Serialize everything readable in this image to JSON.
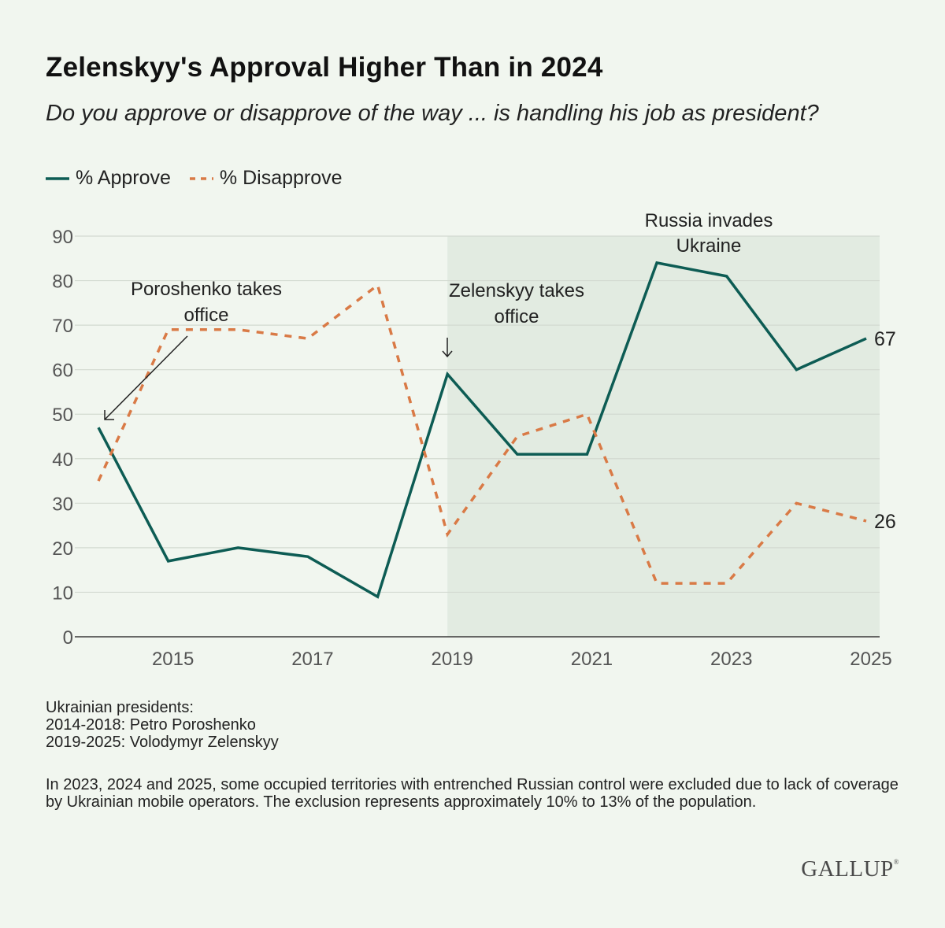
{
  "header": {
    "title": "Zelenskyy's Approval Higher Than in 2024",
    "subtitle": "Do you approve or disapprove of the way ... is handling his job as president?"
  },
  "chart_data": {
    "type": "line",
    "x": [
      2014,
      2015,
      2016,
      2017,
      2018,
      2019,
      2020,
      2021,
      2022,
      2023,
      2024,
      2025
    ],
    "series": [
      {
        "name": "% Approve",
        "values": [
          47,
          17,
          20,
          18,
          9,
          59,
          41,
          41,
          84,
          81,
          60,
          67
        ],
        "color": "#0d5c54",
        "style": "solid"
      },
      {
        "name": "% Disapprove",
        "values": [
          35,
          69,
          69,
          67,
          79,
          23,
          45,
          50,
          12,
          12,
          30,
          26
        ],
        "color": "#d97a46",
        "style": "dashed"
      }
    ],
    "xticks": [
      2015,
      2017,
      2019,
      2021,
      2023,
      2025
    ],
    "yticks": [
      0,
      10,
      20,
      30,
      40,
      50,
      60,
      70,
      80,
      90
    ],
    "ylim": [
      0,
      90
    ],
    "xlim": [
      2014,
      2025
    ],
    "shaded_region": [
      2019,
      2025
    ],
    "grid": "horizontal",
    "legend_position": "top-left",
    "end_labels": [
      "67",
      "26"
    ],
    "annotations": [
      {
        "lines": [
          "Poroshenko takes",
          "office"
        ],
        "x": 2014,
        "y": 47,
        "arrow": "diagonal"
      },
      {
        "lines": [
          "Zelenskyy takes",
          "office"
        ],
        "x": 2019,
        "y": 59,
        "arrow": "down"
      },
      {
        "lines": [
          "Russia invades",
          "Ukraine"
        ],
        "x": 2022,
        "y": 84,
        "arrow": "none"
      }
    ]
  },
  "notes": {
    "lines": [
      "Ukrainian presidents:",
      "2014-2018: Petro Poroshenko",
      "2019-2025: Volodymyr Zelenskyy"
    ],
    "footnote": "In 2023, 2024 and 2025, some occupied territories with entrenched Russian control were excluded due to lack of coverage by Ukrainian mobile operators. The exclusion represents approximately 10% to 13% of the population."
  },
  "brand": {
    "logo_text": "GALLUP",
    "mark": "®"
  }
}
